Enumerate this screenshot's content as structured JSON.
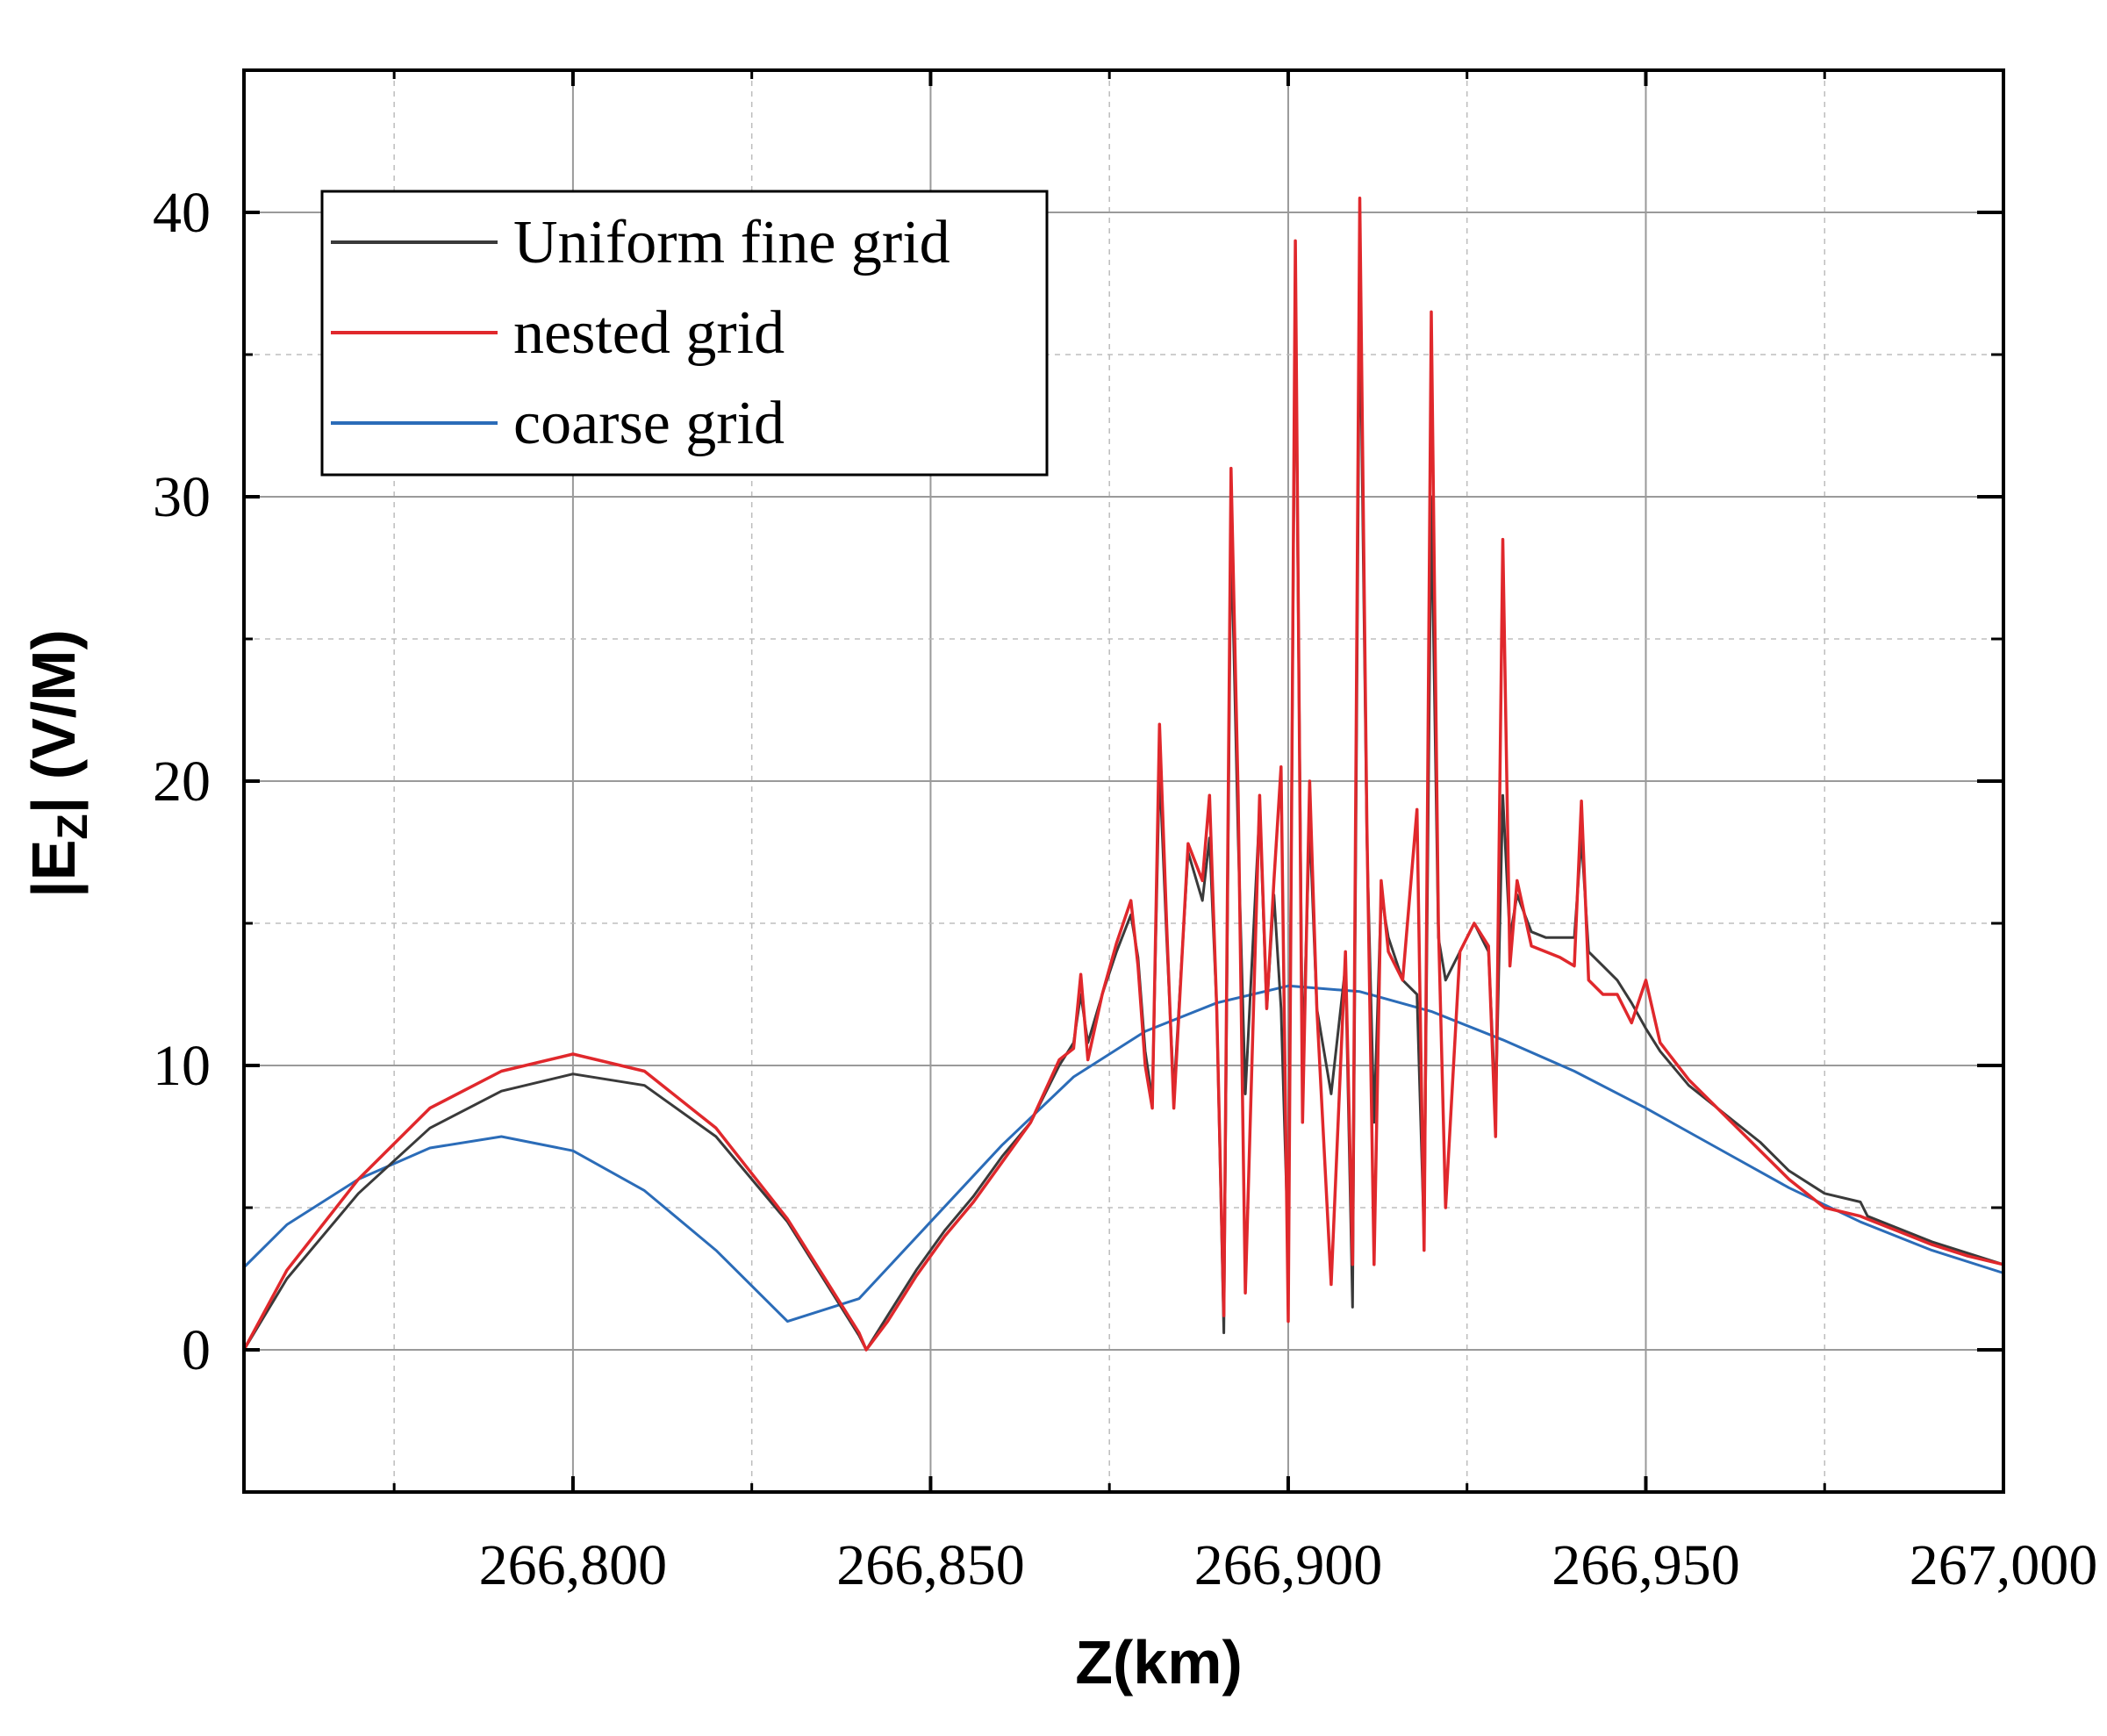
{
  "chart_data": {
    "type": "line",
    "title": "",
    "xlabel": "Z(km)",
    "ylabel": "|E_Z| (V/M)",
    "ylabel_parts": {
      "open": "|E",
      "sub": "Z",
      "close": "| (V/M)"
    },
    "xlim": [
      266754,
      267000
    ],
    "ylim": [
      -5,
      45
    ],
    "x_ticks": [
      266800,
      266850,
      266900,
      266950,
      267000
    ],
    "x_tick_labels": [
      "266,800",
      "266,850",
      "266,900",
      "266,950",
      "267,000"
    ],
    "x_minor_ticks": [
      266775,
      266825,
      266875,
      266925,
      266975
    ],
    "y_ticks": [
      0,
      10,
      20,
      30,
      40
    ],
    "y_tick_labels": [
      "0",
      "10",
      "20",
      "30",
      "40"
    ],
    "y_minor_ticks": [
      5,
      15,
      25,
      35
    ],
    "grid": true,
    "legend_position": "top-left",
    "series": [
      {
        "name": "Uniform fine grid",
        "color": "#3a3a3a",
        "x": [
          266754,
          266760,
          266770,
          266780,
          266790,
          266800,
          266810,
          266820,
          266830,
          266835,
          266840,
          266841,
          266844,
          266848,
          266852,
          266856,
          266860,
          266864,
          266868,
          266870,
          266871,
          266872,
          266874,
          266876,
          266878,
          266879,
          266880,
          266881,
          266882,
          266883,
          266884,
          266886,
          266888,
          266889,
          266890,
          266891,
          266892,
          266893,
          266894,
          266896,
          266897,
          266898,
          266899,
          266900,
          266901,
          266902,
          266903,
          266904,
          266906,
          266908,
          266909,
          266910,
          266911,
          266912,
          266913,
          266914,
          266916,
          266918,
          266919,
          266920,
          266921,
          266922,
          266924,
          266926,
          266928,
          266929,
          266930,
          266931,
          266932,
          266934,
          266936,
          266938,
          266940,
          266941,
          266942,
          266944,
          266946,
          266948,
          266950,
          266952,
          266956,
          266960,
          266966,
          266970,
          266975,
          266980,
          266981,
          266985,
          266990,
          266995,
          267000
        ],
        "y": [
          0,
          2.5,
          5.5,
          7.8,
          9.1,
          9.7,
          9.3,
          7.5,
          4.5,
          2.5,
          0.5,
          0,
          1.2,
          2.8,
          4.2,
          5.4,
          6.8,
          8.0,
          10.0,
          10.8,
          12.5,
          10.8,
          12.5,
          14.0,
          15.3,
          13.8,
          10.5,
          8.8,
          20.5,
          14.5,
          9.0,
          17.5,
          15.8,
          18.0,
          12.0,
          0.6,
          29.0,
          18.0,
          9.0,
          19.0,
          12.0,
          16.0,
          12.0,
          3.5,
          37.0,
          10.0,
          18.5,
          12.0,
          9.0,
          13.5,
          1.5,
          37.5,
          18.0,
          8.0,
          16.0,
          14.5,
          13.0,
          12.5,
          4.0,
          30.0,
          14.5,
          13.0,
          14.0,
          15.0,
          14.0,
          8.5,
          19.5,
          14.5,
          16.0,
          14.7,
          14.5,
          14.5,
          14.5,
          18.0,
          14.0,
          13.5,
          13.0,
          12.2,
          11.3,
          10.5,
          9.3,
          8.5,
          7.3,
          6.3,
          5.5,
          5.2,
          4.7,
          4.3,
          3.8,
          3.4,
          3.0
        ]
      },
      {
        "name": "nested grid",
        "color": "#e0282c",
        "x": [
          266754,
          266760,
          266770,
          266780,
          266790,
          266800,
          266810,
          266820,
          266830,
          266835,
          266840,
          266841,
          266844,
          266848,
          266852,
          266856,
          266860,
          266864,
          266868,
          266870,
          266871,
          266872,
          266874,
          266876,
          266878,
          266879,
          266880,
          266881,
          266882,
          266883,
          266884,
          266886,
          266888,
          266889,
          266890,
          266891,
          266892,
          266893,
          266894,
          266896,
          266897,
          266898,
          266899,
          266900,
          266901,
          266902,
          266903,
          266904,
          266906,
          266908,
          266909,
          266910,
          266911,
          266912,
          266913,
          266914,
          266916,
          266918,
          266919,
          266920,
          266921,
          266922,
          266924,
          266926,
          266928,
          266929,
          266930,
          266931,
          266932,
          266934,
          266936,
          266938,
          266940,
          266941,
          266942,
          266944,
          266946,
          266948,
          266950,
          266952,
          266956,
          266960,
          266966,
          266970,
          266975,
          266980,
          266981,
          266985,
          266990,
          266995,
          267000
        ],
        "y": [
          0,
          2.8,
          6.0,
          8.5,
          9.8,
          10.4,
          9.8,
          7.8,
          4.6,
          2.6,
          0.6,
          0,
          1.0,
          2.6,
          4.0,
          5.2,
          6.6,
          8.0,
          10.2,
          10.6,
          13.2,
          10.2,
          12.5,
          14.3,
          15.8,
          13.5,
          10.0,
          8.5,
          22.0,
          15.0,
          8.5,
          17.8,
          16.5,
          19.5,
          12.0,
          1.2,
          31.0,
          19.5,
          2.0,
          19.5,
          12.0,
          16.5,
          20.5,
          1.0,
          39.0,
          8.0,
          20.0,
          12.0,
          2.3,
          14.0,
          3.0,
          40.5,
          18.5,
          3.0,
          16.5,
          14.0,
          13.0,
          19.0,
          3.5,
          36.5,
          15.0,
          5.0,
          14.0,
          15.0,
          14.2,
          7.5,
          28.5,
          13.5,
          16.5,
          14.2,
          14.0,
          13.8,
          13.5,
          19.3,
          13.0,
          12.5,
          12.5,
          11.5,
          13.0,
          10.8,
          9.5,
          8.5,
          7.0,
          6.0,
          5.0,
          4.7,
          4.6,
          4.2,
          3.7,
          3.3,
          3.0
        ]
      },
      {
        "name": "coarse grid",
        "color": "#2b6cb8",
        "x": [
          266754,
          266760,
          266770,
          266780,
          266790,
          266800,
          266810,
          266820,
          266830,
          266840,
          266850,
          266860,
          266870,
          266880,
          266890,
          266900,
          266910,
          266920,
          266930,
          266940,
          266950,
          266960,
          266970,
          266980,
          266990,
          267000
        ],
        "y": [
          2.9,
          4.4,
          6.0,
          7.1,
          7.5,
          7.0,
          5.6,
          3.5,
          1.0,
          1.8,
          4.5,
          7.2,
          9.6,
          11.2,
          12.2,
          12.8,
          12.6,
          11.9,
          10.9,
          9.8,
          8.5,
          7.1,
          5.7,
          4.5,
          3.5,
          2.7
        ]
      }
    ]
  }
}
